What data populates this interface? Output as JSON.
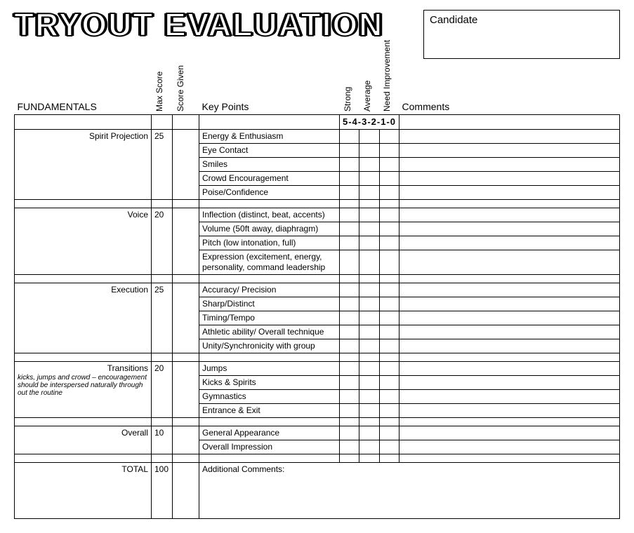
{
  "title": "TRYOUT EVALUATION",
  "candidate_label": "Candidate",
  "headers": {
    "fundamentals": "FUNDAMENTALS",
    "max_score": "Max Score",
    "score_given": "Score Given",
    "key_points": "Key Points",
    "strong": "Strong",
    "average": "Average",
    "need_improvement": "Need Improvement",
    "comments": "Comments",
    "scale": "5-4-3-2-1-0"
  },
  "sections": [
    {
      "label": "Spirit Projection",
      "max": "25",
      "points": [
        "Energy & Enthusiasm",
        "Eye Contact",
        "Smiles",
        "Crowd Encouragement",
        "Poise/Confidence"
      ]
    },
    {
      "label": "Voice",
      "max": "20",
      "points": [
        "Inflection (distinct, beat, accents)",
        "Volume (50ft away, diaphragm)",
        "Pitch (low intonation, full)",
        "Expression (excitement, energy, personality, command leadership"
      ]
    },
    {
      "label": "Execution",
      "max": "25",
      "points": [
        "Accuracy/ Precision",
        "Sharp/Distinct",
        "Timing/Tempo",
        "Athletic ability/ Overall technique",
        "Unity/Synchronicity with group"
      ]
    },
    {
      "label": "Transitions",
      "sublabel": "kicks, jumps and crowd – encouragement should be interspersed naturally through out the routine",
      "max": "20",
      "points": [
        "Jumps",
        "Kicks & Spirits",
        "Gymnastics",
        "Entrance & Exit"
      ]
    },
    {
      "label": "Overall",
      "max": "10",
      "points": [
        "General Appearance",
        "Overall Impression"
      ]
    }
  ],
  "total": {
    "label": "TOTAL",
    "max": "100"
  },
  "additional": "Additional Comments:"
}
